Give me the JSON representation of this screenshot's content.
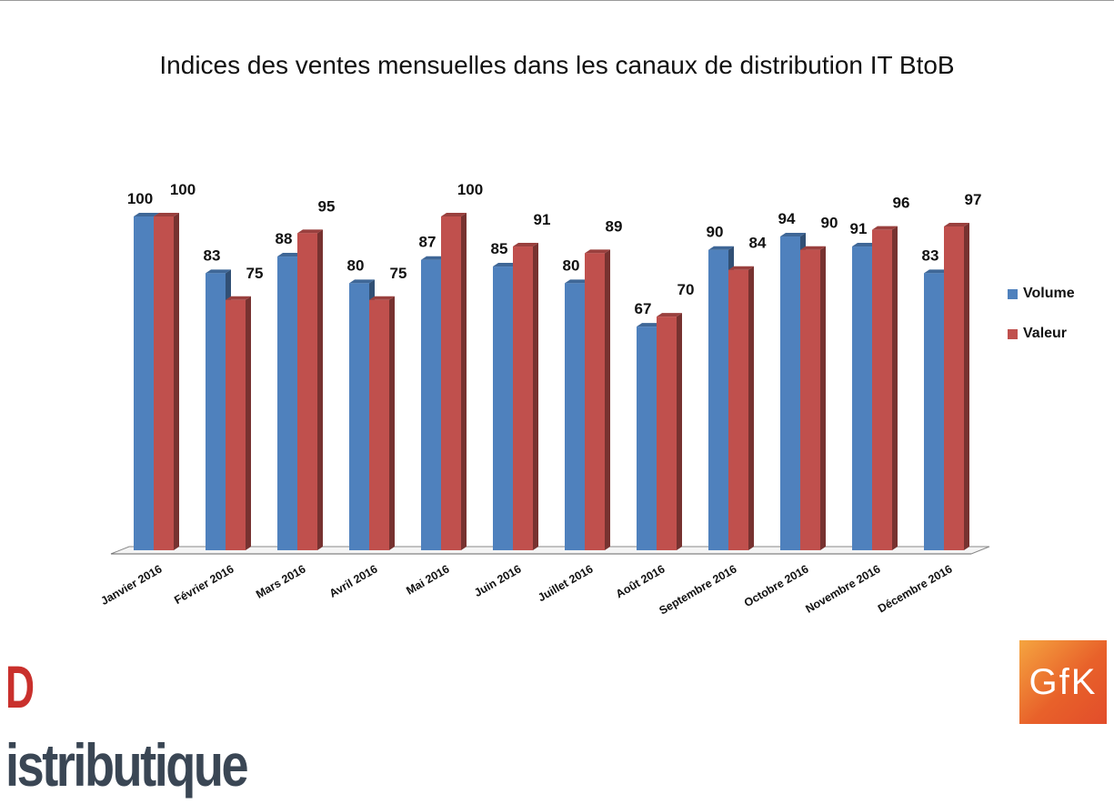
{
  "title": "Indices des ventes mensuelles dans les canaux de distribution IT BtoB",
  "legend": {
    "volume_label": "Volume",
    "valeur_label": "Valeur"
  },
  "logos": {
    "left_text": "Distributique",
    "right_text": "GfK"
  },
  "colors": {
    "volume": "#4f81bd",
    "valeur": "#c0504d"
  },
  "chart_data": {
    "type": "bar",
    "categories": [
      "Janvier 2016",
      "Février 2016",
      "Mars 2016",
      "Avril 2016",
      "Mai 2016",
      "Juin 2016",
      "Juillet 2016",
      "Août 2016",
      "Septembre 2016",
      "Octobre 2016",
      "Novembre 2016",
      "Décembre 2016"
    ],
    "series": [
      {
        "name": "Volume",
        "values": [
          100,
          83,
          88,
          80,
          87,
          85,
          80,
          67,
          90,
          94,
          91,
          83
        ]
      },
      {
        "name": "Valeur",
        "values": [
          100,
          75,
          95,
          75,
          100,
          91,
          89,
          70,
          84,
          90,
          96,
          97
        ]
      }
    ],
    "ylim": [
      0,
      100
    ],
    "grid": false,
    "legend_position": "right",
    "three_d": true
  }
}
